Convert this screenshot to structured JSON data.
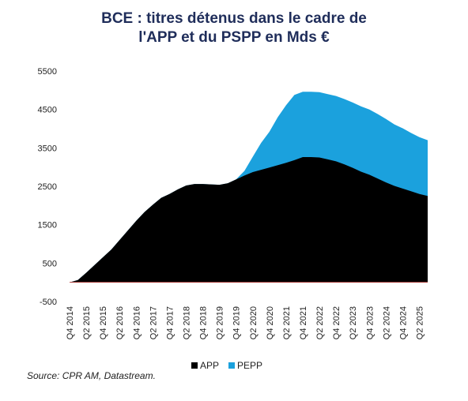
{
  "chart_data": {
    "type": "area",
    "title_lines": [
      "BCE : titres détenus dans le cadre de",
      "l'APP et du PSPP en Mds €"
    ],
    "xlabel": "",
    "ylabel": "",
    "ylim": [
      -500,
      5500
    ],
    "yticks": [
      5500,
      4500,
      3500,
      2500,
      1500,
      500,
      -500
    ],
    "xtick_labels": [
      "Q4 2014",
      "Q2 2015",
      "Q4 2015",
      "Q2 2016",
      "Q4 2016",
      "Q2 2017",
      "Q4 2017",
      "Q2 2018",
      "Q4 2018",
      "Q2 2019",
      "Q4 2019",
      "Q2 2020",
      "Q4 2020",
      "Q2 2021",
      "Q4 2021",
      "Q2 2022",
      "Q4 2022",
      "Q2 2023",
      "Q4 2023",
      "Q2 2024",
      "Q4 2024",
      "Q2 2025"
    ],
    "x": [
      "Q4 2014",
      "Q1 2015",
      "Q2 2015",
      "Q3 2015",
      "Q4 2015",
      "Q1 2016",
      "Q2 2016",
      "Q3 2016",
      "Q4 2016",
      "Q1 2017",
      "Q2 2017",
      "Q3 2017",
      "Q4 2017",
      "Q1 2018",
      "Q2 2018",
      "Q3 2018",
      "Q4 2018",
      "Q1 2019",
      "Q2 2019",
      "Q3 2019",
      "Q4 2019",
      "Q1 2020",
      "Q2 2020",
      "Q3 2020",
      "Q4 2020",
      "Q1 2021",
      "Q2 2021",
      "Q3 2021",
      "Q4 2021",
      "Q1 2022",
      "Q2 2022",
      "Q3 2022",
      "Q4 2022",
      "Q1 2023",
      "Q2 2023",
      "Q3 2023",
      "Q4 2023",
      "Q1 2024",
      "Q2 2024",
      "Q3 2024",
      "Q4 2024",
      "Q1 2025",
      "Q2 2025",
      "Q3 2025"
    ],
    "grid": false,
    "legend_position": "bottom",
    "series": [
      {
        "name": "APP",
        "color": "#000000",
        "values": [
          0,
          60,
          250,
          450,
          650,
          850,
          1100,
          1350,
          1600,
          1830,
          2020,
          2200,
          2300,
          2420,
          2520,
          2560,
          2560,
          2550,
          2540,
          2580,
          2680,
          2780,
          2870,
          2930,
          2990,
          3050,
          3110,
          3180,
          3260,
          3260,
          3250,
          3200,
          3150,
          3070,
          2980,
          2880,
          2800,
          2700,
          2600,
          2510,
          2440,
          2370,
          2300,
          2250
        ]
      },
      {
        "name": "PEPP",
        "color": "#1ba1dd",
        "values": [
          0,
          0,
          0,
          0,
          0,
          0,
          0,
          0,
          0,
          0,
          0,
          0,
          0,
          0,
          0,
          0,
          0,
          0,
          0,
          0,
          0,
          120,
          400,
          700,
          930,
          1250,
          1500,
          1700,
          1700,
          1700,
          1700,
          1700,
          1700,
          1700,
          1700,
          1700,
          1700,
          1680,
          1650,
          1600,
          1570,
          1520,
          1480,
          1450
        ]
      }
    ]
  },
  "legend": {
    "app_label": "APP",
    "pepp_label": "PEPP"
  },
  "source": "Source: CPR AM, Datastream."
}
